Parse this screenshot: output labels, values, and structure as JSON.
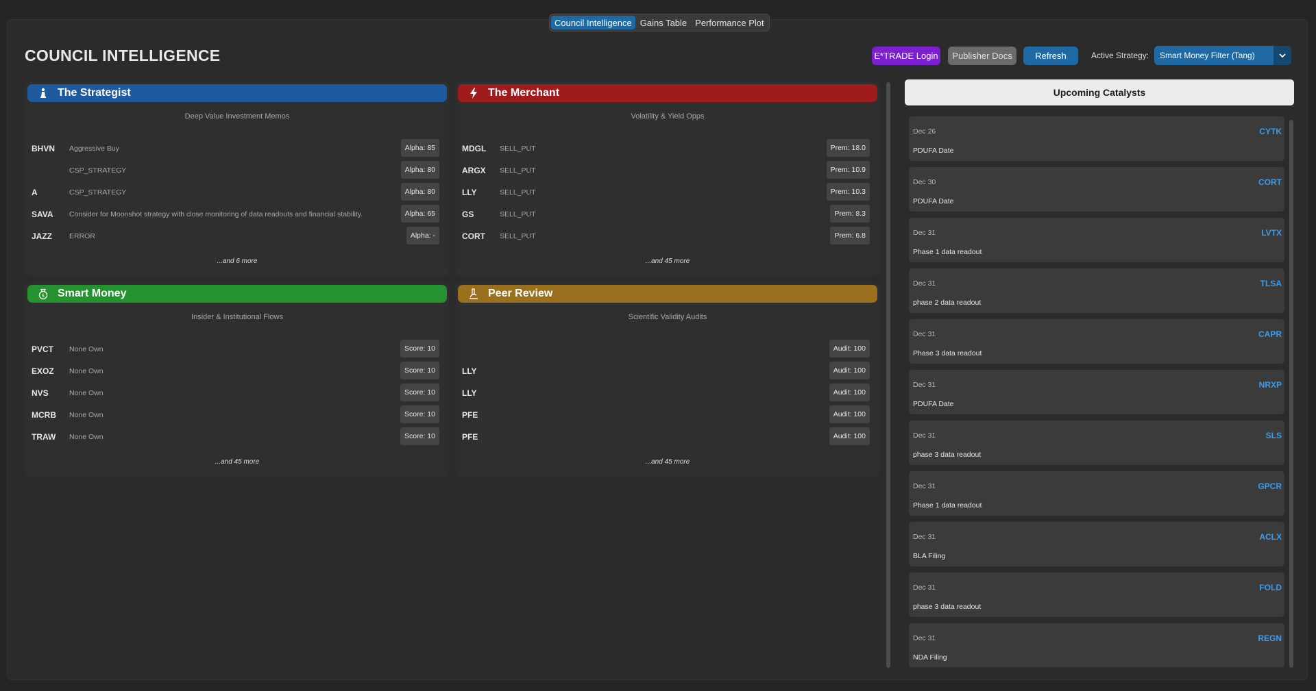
{
  "tabs": [
    {
      "label": "Council Intelligence",
      "active": true
    },
    {
      "label": "Gains Table",
      "active": false
    },
    {
      "label": "Performance Plot",
      "active": false
    }
  ],
  "header": {
    "title": "COUNCIL INTELLIGENCE",
    "etrade_label": "E*TRADE Login",
    "docs_label": "Publisher Docs",
    "refresh_label": "Refresh",
    "strategy_label": "Active Strategy:",
    "strategy_value": "Smart Money Filter (Tang)"
  },
  "cards": [
    {
      "name": "The Strategist",
      "icon": "chess-piece-icon",
      "color": "#1f5a9e",
      "subtitle": "Deep Value Investment Memos",
      "rows": [
        {
          "ticker": "BHVN",
          "desc": "Aggressive Buy",
          "badge": "Alpha: 85"
        },
        {
          "ticker": "",
          "desc": "CSP_STRATEGY",
          "badge": "Alpha: 80"
        },
        {
          "ticker": "A",
          "desc": "CSP_STRATEGY",
          "badge": "Alpha: 80"
        },
        {
          "ticker": "SAVA",
          "desc": "Consider for Moonshot strategy with close monitoring of data readouts and financial stability.",
          "badge": "Alpha: 65"
        },
        {
          "ticker": "JAZZ",
          "desc": "ERROR",
          "badge": "Alpha: -"
        }
      ],
      "more": "...and 6 more"
    },
    {
      "name": "The Merchant",
      "icon": "lightning-icon",
      "color": "#a01c1c",
      "subtitle": "Volatility & Yield Opps",
      "rows": [
        {
          "ticker": "MDGL",
          "desc": "SELL_PUT",
          "badge": "Prem: 18.0"
        },
        {
          "ticker": "ARGX",
          "desc": "SELL_PUT",
          "badge": "Prem: 10.9"
        },
        {
          "ticker": "LLY",
          "desc": "SELL_PUT",
          "badge": "Prem: 10.3"
        },
        {
          "ticker": "GS",
          "desc": "SELL_PUT",
          "badge": "Prem: 8.3"
        },
        {
          "ticker": "CORT",
          "desc": "SELL_PUT",
          "badge": "Prem: 6.8"
        }
      ],
      "more": "...and 45 more"
    },
    {
      "name": "Smart Money",
      "icon": "money-bag-icon",
      "color": "#24922e",
      "subtitle": "Insider & Institutional Flows",
      "rows": [
        {
          "ticker": "PVCT",
          "desc": "None Own",
          "badge": "Score: 10"
        },
        {
          "ticker": "EXOZ",
          "desc": "None Own",
          "badge": "Score: 10"
        },
        {
          "ticker": "NVS",
          "desc": "None Own",
          "badge": "Score: 10"
        },
        {
          "ticker": "MCRB",
          "desc": "None Own",
          "badge": "Score: 10"
        },
        {
          "ticker": "TRAW",
          "desc": "None Own",
          "badge": "Score: 10"
        }
      ],
      "more": "...and 45 more"
    },
    {
      "name": "Peer Review",
      "icon": "microscope-icon",
      "color": "#9a6f1e",
      "subtitle": "Scientific Validity Audits",
      "rows": [
        {
          "ticker": "",
          "desc": "",
          "badge": "Audit: 100"
        },
        {
          "ticker": "LLY",
          "desc": "",
          "badge": "Audit: 100"
        },
        {
          "ticker": "LLY",
          "desc": "",
          "badge": "Audit: 100"
        },
        {
          "ticker": "PFE",
          "desc": "",
          "badge": "Audit: 100"
        },
        {
          "ticker": "PFE",
          "desc": "",
          "badge": "Audit: 100"
        }
      ],
      "more": "...and 45 more"
    }
  ],
  "catalysts": {
    "title": "Upcoming Catalysts",
    "items": [
      {
        "date": "Dec 26",
        "symbol": "CYTK",
        "event": "PDUFA Date"
      },
      {
        "date": "Dec 30",
        "symbol": "CORT",
        "event": "PDUFA Date"
      },
      {
        "date": "Dec 31",
        "symbol": "LVTX",
        "event": "Phase 1 data readout"
      },
      {
        "date": "Dec 31",
        "symbol": "TLSA",
        "event": "phase 2 data readout"
      },
      {
        "date": "Dec 31",
        "symbol": "CAPR",
        "event": "Phase 3 data readout"
      },
      {
        "date": "Dec 31",
        "symbol": "NRXP",
        "event": "PDUFA Date"
      },
      {
        "date": "Dec 31",
        "symbol": "SLS",
        "event": "phase 3 data readout"
      },
      {
        "date": "Dec 31",
        "symbol": "GPCR",
        "event": "Phase 1 data readout"
      },
      {
        "date": "Dec 31",
        "symbol": "ACLX",
        "event": "BLA Filing"
      },
      {
        "date": "Dec 31",
        "symbol": "FOLD",
        "event": "phase 3 data readout"
      },
      {
        "date": "Dec 31",
        "symbol": "REGN",
        "event": "NDA Filing"
      }
    ]
  }
}
